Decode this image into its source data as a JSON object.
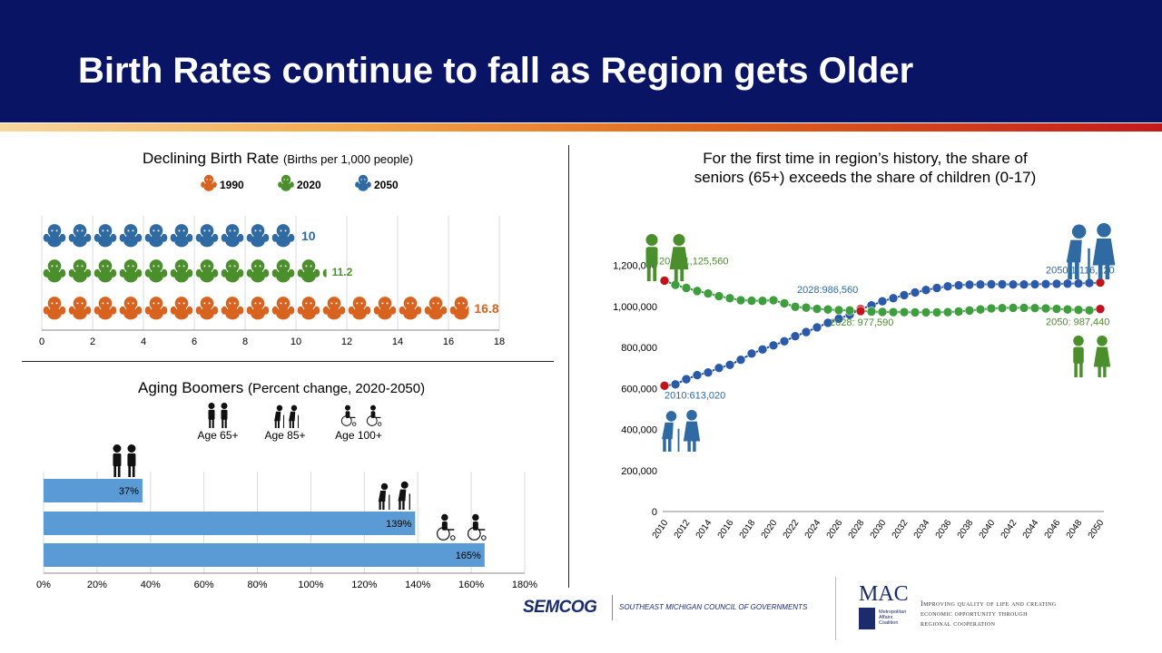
{
  "title": "Birth Rates continue to fall as Region gets Older",
  "birth_chart": {
    "title": "Declining Birth Rate",
    "title_note": "(Births per 1,000 people)"
  },
  "aging_chart": {
    "title": "Aging Boomers",
    "title_note": "(Percent change, 2020-2050)",
    "icon_labels": [
      "Age 65+",
      "Age 85+",
      "Age 100+"
    ]
  },
  "pop_chart": {
    "title_line1": "For the first time in region’s history, the share of",
    "title_line2": "seniors (65+) exceeds the share of children (0-17)"
  },
  "footer": {
    "semcog": "SEMCOG",
    "semcog_sub": "SOUTHEAST MICHIGAN COUNCIL OF GOVERNMENTS",
    "mac": "MAC",
    "mac_sub": [
      "Metropolitan",
      "Affairs",
      "Coalition"
    ],
    "mac_tagline": [
      "Improving quality of life and creating",
      "economic opportunity through",
      "regional cooperation"
    ]
  },
  "colors": {
    "y1990": "#d8621f",
    "y2020": "#4a8f2c",
    "y2050": "#2f6aa3",
    "bar": "#5b9bd5",
    "seniors_line": "#1f4f9c",
    "children_line": "#2e8b2e",
    "marker_red": "#c0141c"
  },
  "chart_data": [
    {
      "type": "bar",
      "orientation": "horizontal",
      "title": "Declining Birth Rate (Births per 1,000 people)",
      "categories": [
        "2050",
        "2020",
        "1990"
      ],
      "values": [
        10,
        11.2,
        16.8
      ],
      "value_labels": [
        "10",
        "11.2",
        "16.8"
      ],
      "legend": [
        "1990",
        "2020",
        "2050"
      ],
      "xlim": [
        0,
        18
      ],
      "xticks": [
        "0",
        "2",
        "4",
        "6",
        "8",
        "10",
        "12",
        "14",
        "16",
        "18"
      ],
      "grid": true
    },
    {
      "type": "bar",
      "orientation": "horizontal",
      "title": "Aging Boomers (Percent change, 2020-2050)",
      "categories": [
        "Age 65+",
        "Age 85+",
        "Age 100+"
      ],
      "values": [
        37,
        139,
        165
      ],
      "value_labels": [
        "37%",
        "139%",
        "165%"
      ],
      "xlim": [
        0,
        180
      ],
      "xticks": [
        "0%",
        "20%",
        "40%",
        "60%",
        "80%",
        "100%",
        "120%",
        "140%",
        "160%",
        "180%"
      ],
      "grid": true
    },
    {
      "type": "line",
      "title": "For the first time in region’s history, the share of seniors (65+) exceeds the share of children (0-17)",
      "x": [
        2010,
        2011,
        2012,
        2013,
        2014,
        2015,
        2016,
        2017,
        2018,
        2019,
        2020,
        2021,
        2022,
        2023,
        2024,
        2025,
        2026,
        2027,
        2028,
        2029,
        2030,
        2031,
        2032,
        2033,
        2034,
        2035,
        2036,
        2037,
        2038,
        2039,
        2040,
        2041,
        2042,
        2043,
        2044,
        2045,
        2046,
        2047,
        2048,
        2049,
        2050
      ],
      "xticks": [
        "2010",
        "2012",
        "2014",
        "2016",
        "2018",
        "2020",
        "2022",
        "2024",
        "2026",
        "2028",
        "2030",
        "2032",
        "2034",
        "2036",
        "2038",
        "2040",
        "2042",
        "2044",
        "2046",
        "2048",
        "2050"
      ],
      "ylim": [
        0,
        1300000
      ],
      "yticks": [
        "0",
        "200,000",
        "400,000",
        "600,000",
        "800,000",
        "1,000,000",
        "1,200,000"
      ],
      "series": [
        {
          "values": [
            613020,
            620000,
            645000,
            665000,
            678000,
            700000,
            715000,
            740000,
            770000,
            790000,
            810000,
            830000,
            855000,
            875000,
            898000,
            920000,
            940000,
            960000,
            986560,
            1005000,
            1025000,
            1040000,
            1055000,
            1068000,
            1080000,
            1090000,
            1098000,
            1103000,
            1106000,
            1107000,
            1108000,
            1108000,
            1107000,
            1107000,
            1108000,
            1109000,
            1110000,
            1111000,
            1112000,
            1114000,
            1116120
          ]
        },
        {
          "values": [
            1125560,
            1105000,
            1090000,
            1075000,
            1063000,
            1050000,
            1040000,
            1030000,
            1028000,
            1027000,
            1030000,
            1015000,
            998000,
            994000,
            988000,
            985000,
            982000,
            980000,
            977590,
            975000,
            973000,
            972000,
            972000,
            971000,
            971000,
            971000,
            972000,
            975000,
            980000,
            985000,
            990000,
            992000,
            993000,
            993000,
            992000,
            990000,
            988000,
            985000,
            983000,
            981000,
            987440
          ]
        }
      ],
      "annotations": [
        "2010:1,125,560",
        "2010:613,020",
        "2028:986,560",
        "2028: 977,590",
        "2050:1,116,120",
        "2050: 987,440"
      ]
    }
  ]
}
